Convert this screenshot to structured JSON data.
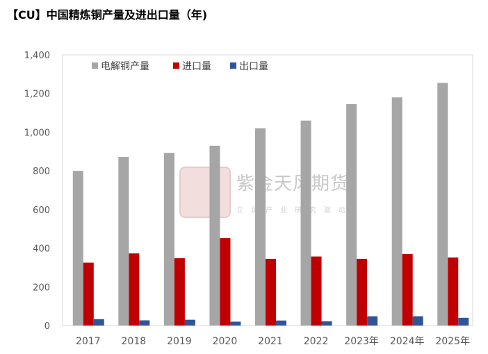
{
  "title": "【CU】中国精炼铜产量及进出口量（年)",
  "watermark": {
    "main": "紫金天风期货",
    "sub": "立足产业研究驱动"
  },
  "chart_data": {
    "type": "bar",
    "categories": [
      "2017",
      "2018",
      "2019",
      "2020",
      "2021",
      "2022",
      "2023年",
      "2024年",
      "2025年"
    ],
    "series": [
      {
        "name": "电解铜产量",
        "color": "#a6a6a6",
        "values": [
          800,
          872,
          893,
          930,
          1020,
          1060,
          1145,
          1180,
          1255
        ]
      },
      {
        "name": "进口量",
        "color": "#c00000",
        "values": [
          325,
          373,
          348,
          452,
          345,
          357,
          345,
          370,
          352
        ]
      },
      {
        "name": "出口量",
        "color": "#2f5597",
        "values": [
          33,
          27,
          30,
          20,
          26,
          22,
          48,
          48,
          40
        ]
      }
    ],
    "ylim": [
      0,
      1400
    ],
    "yticks": [
      "0",
      "200",
      "400",
      "600",
      "800",
      "1,000",
      "1,200",
      "1,400"
    ],
    "legend_position": "top-left-inside",
    "grid": false
  }
}
